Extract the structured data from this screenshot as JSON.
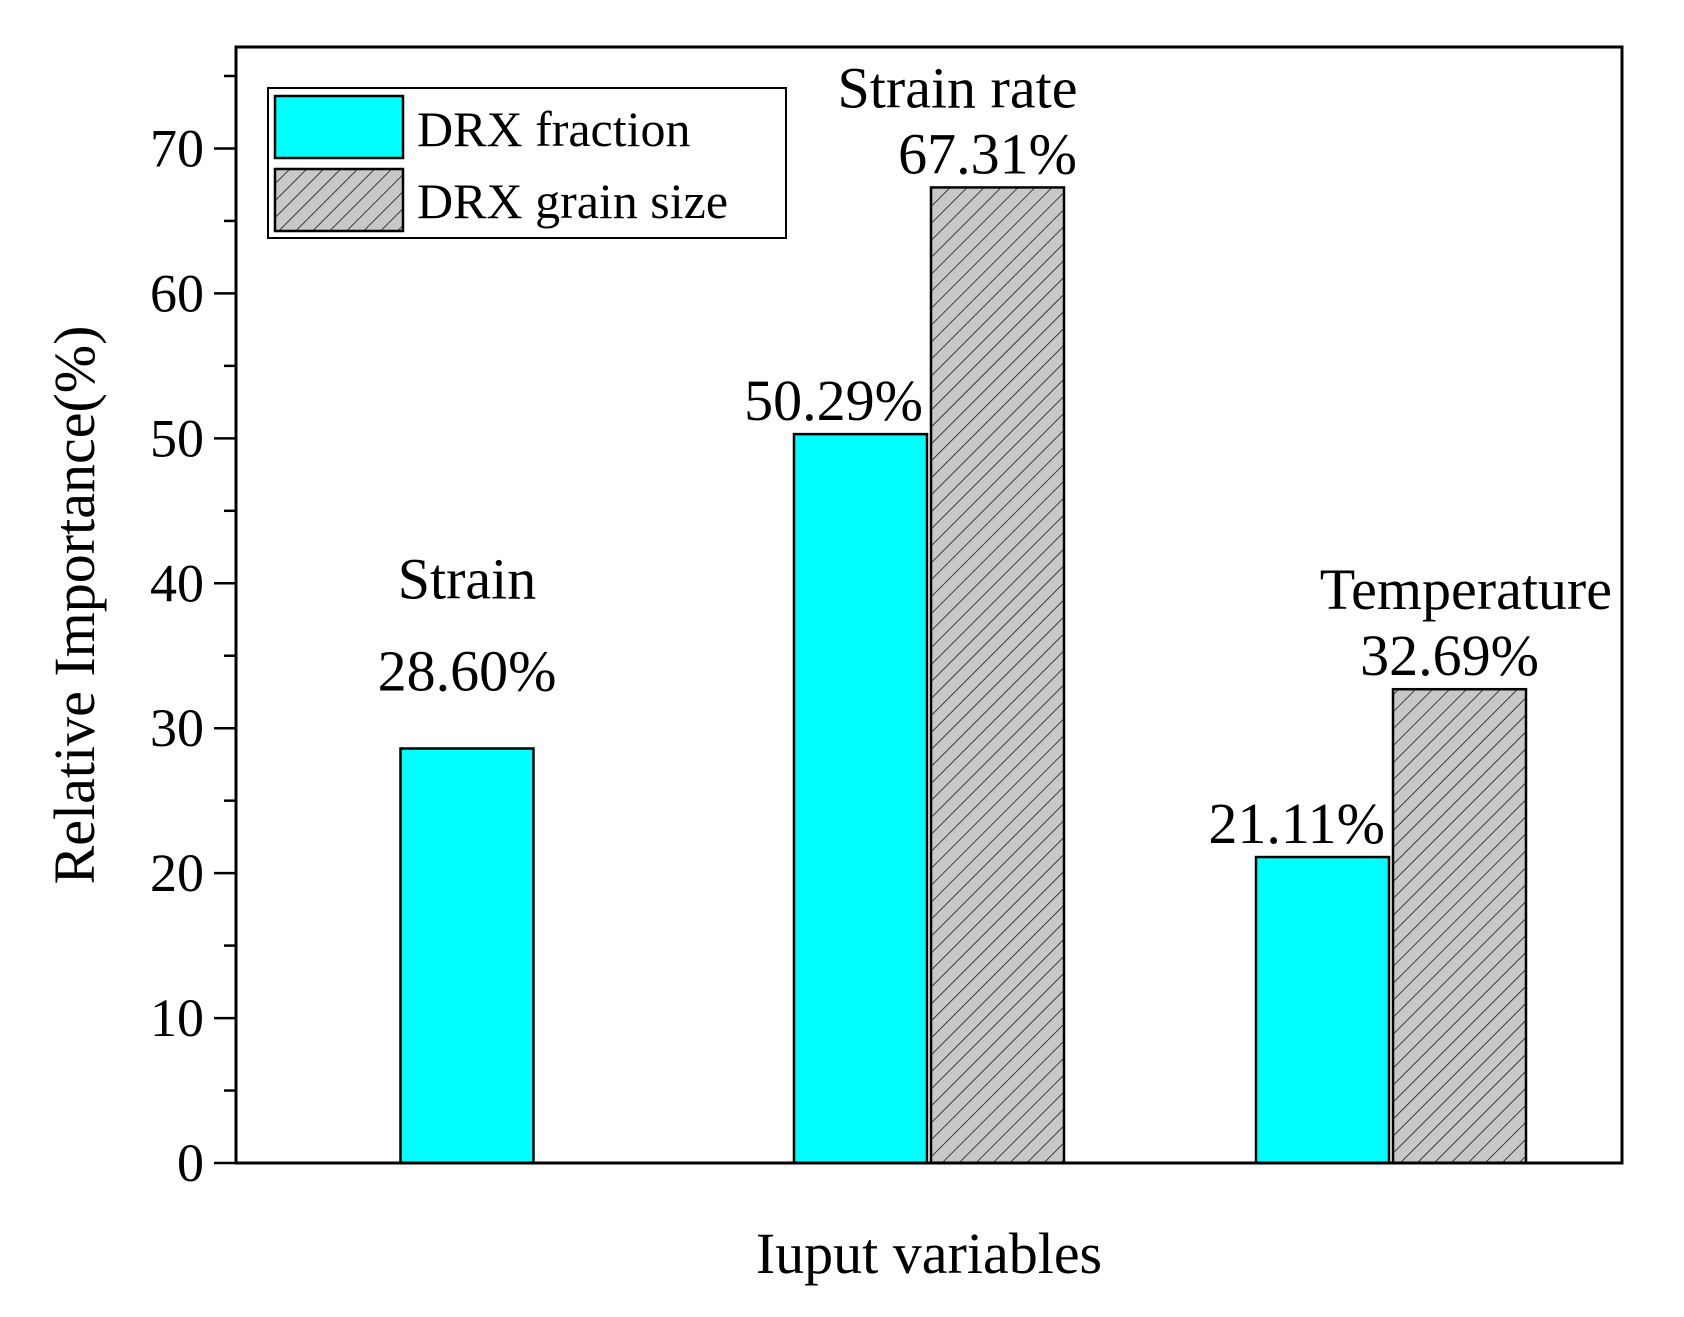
{
  "chart_data": {
    "type": "bar",
    "title": "",
    "xlabel": "Iuput variables",
    "ylabel": "Relative Importance(%)",
    "ylim": [
      0,
      77
    ],
    "yticks": [
      0,
      10,
      20,
      30,
      40,
      50,
      60,
      70
    ],
    "y_minor_step": 5,
    "grid": false,
    "legend_position": "top-left",
    "categories": [
      "Strain",
      "Strain rate",
      "Temperature"
    ],
    "series": [
      {
        "name": "DRX fraction",
        "color": "#00ffff",
        "pattern": "solid",
        "values": [
          28.6,
          50.29,
          21.11
        ],
        "labels": [
          "28.60%",
          "50.29%",
          "21.11%"
        ]
      },
      {
        "name": "DRX grain size",
        "color": "#c0c0c0",
        "pattern": "hatch",
        "values": [
          null,
          67.31,
          32.69
        ],
        "labels": [
          "",
          "67.31%",
          "32.69%"
        ]
      }
    ]
  }
}
